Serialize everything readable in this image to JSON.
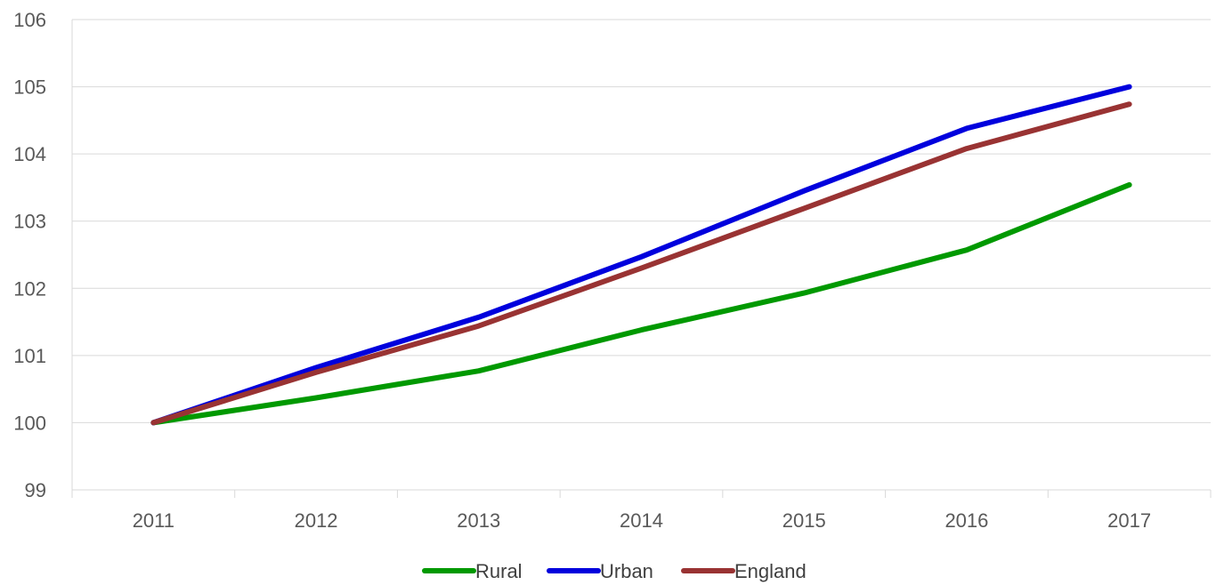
{
  "chart_data": {
    "type": "line",
    "title": "",
    "xlabel": "",
    "ylabel": "",
    "categories": [
      "2011",
      "2012",
      "2013",
      "2014",
      "2015",
      "2016",
      "2017"
    ],
    "ylim": [
      99,
      106
    ],
    "yticks": [
      99,
      100,
      101,
      102,
      103,
      104,
      105,
      106
    ],
    "grid": "horizontal",
    "legend_position": "bottom",
    "series": [
      {
        "name": "Rural",
        "color": "#009900",
        "values": [
          100,
          100.37,
          100.77,
          101.38,
          101.93,
          102.57,
          103.54
        ]
      },
      {
        "name": "Urban",
        "color": "#0000DD",
        "values": [
          100,
          100.82,
          101.57,
          102.47,
          103.45,
          104.38,
          105.0
        ]
      },
      {
        "name": "England",
        "color": "#993333",
        "values": [
          100,
          100.75,
          101.44,
          102.3,
          103.19,
          104.08,
          104.74
        ]
      }
    ]
  }
}
